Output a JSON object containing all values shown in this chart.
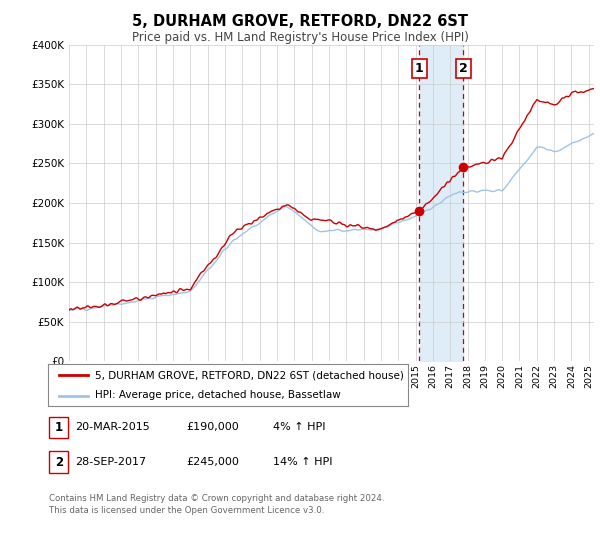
{
  "title": "5, DURHAM GROVE, RETFORD, DN22 6ST",
  "subtitle": "Price paid vs. HM Land Registry's House Price Index (HPI)",
  "ylabel_ticks": [
    "£0",
    "£50K",
    "£100K",
    "£150K",
    "£200K",
    "£250K",
    "£300K",
    "£350K",
    "£400K"
  ],
  "ylim": [
    0,
    400000
  ],
  "xlim_start": 1995.0,
  "xlim_end": 2025.3,
  "sale1_date": 2015.22,
  "sale1_price": 190000,
  "sale1_label": "1",
  "sale2_date": 2017.75,
  "sale2_price": 245000,
  "sale2_label": "2",
  "hpi_color": "#a0c4e8",
  "price_color": "#cc0000",
  "sale_marker_color": "#cc0000",
  "shade_color": "#daeaf7",
  "vline_color": "#cc0000",
  "legend_line1": "5, DURHAM GROVE, RETFORD, DN22 6ST (detached house)",
  "legend_line2": "HPI: Average price, detached house, Bassetlaw",
  "table_row1": [
    "1",
    "20-MAR-2015",
    "£190,000",
    "4% ↑ HPI"
  ],
  "table_row2": [
    "2",
    "28-SEP-2017",
    "£245,000",
    "14% ↑ HPI"
  ],
  "footnote": "Contains HM Land Registry data © Crown copyright and database right 2024.\nThis data is licensed under the Open Government Licence v3.0.",
  "background_color": "#ffffff",
  "grid_color": "#cccccc"
}
